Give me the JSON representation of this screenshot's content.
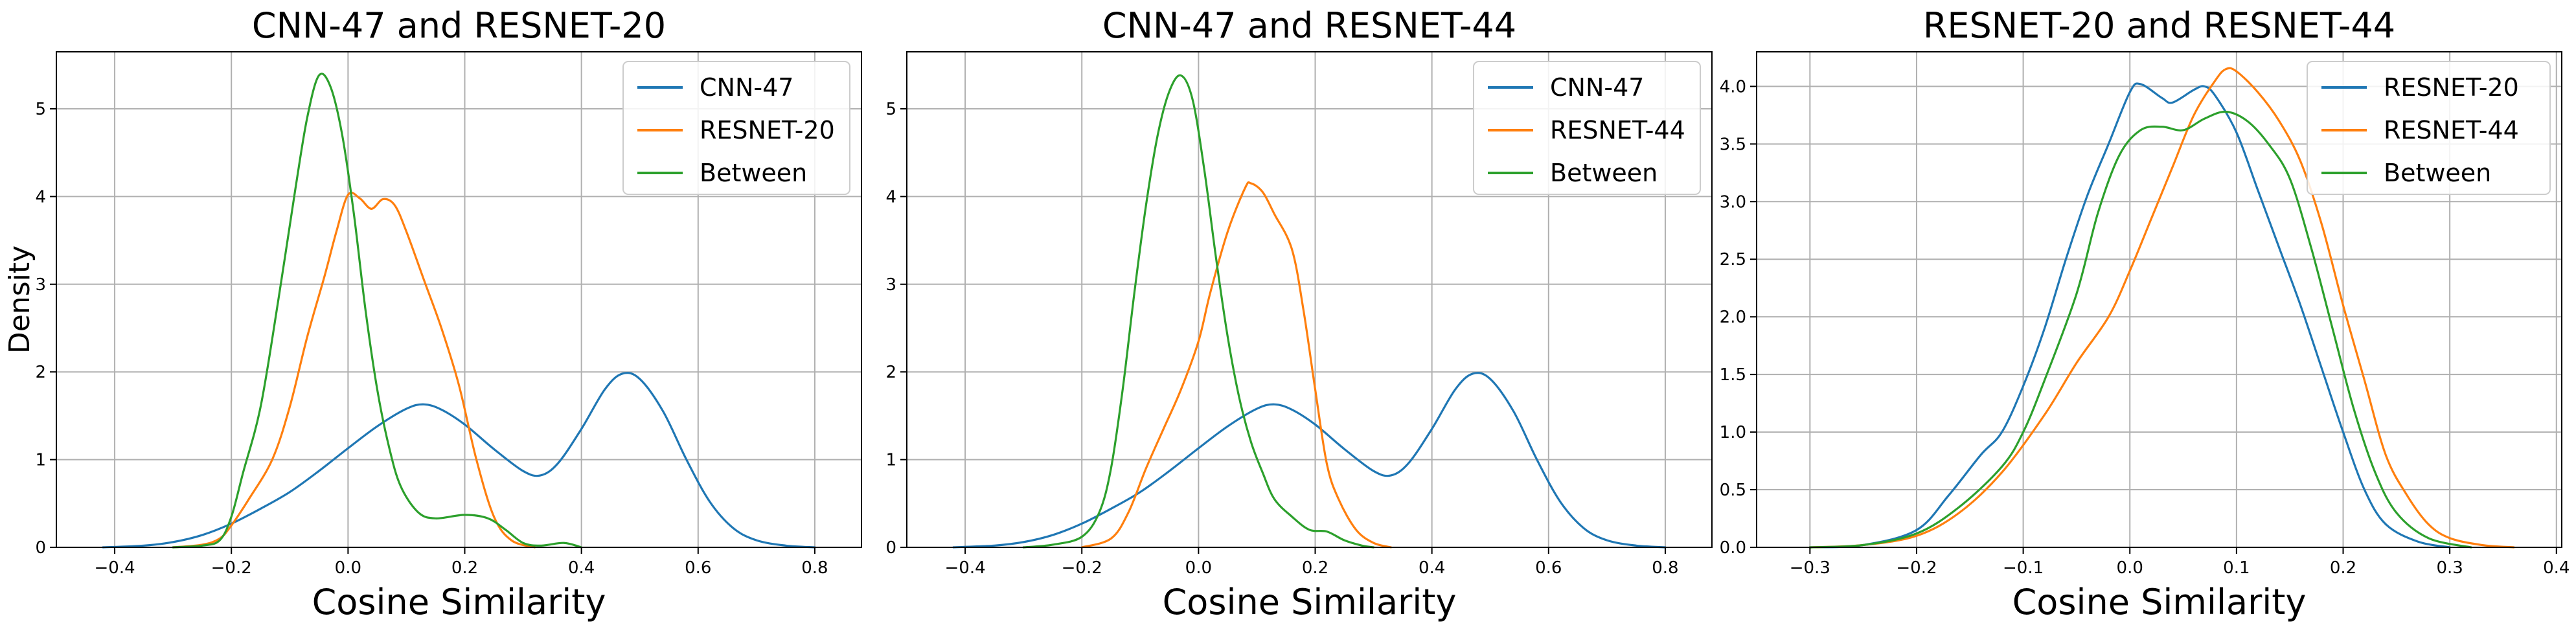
{
  "figure": {
    "shared_ylabel": "Density"
  },
  "chart_data": [
    {
      "type": "line",
      "title": "CNN-47 and RESNET-20",
      "xlabel": "Cosine Similarity",
      "ylabel": "Density",
      "xlim": [
        -0.5,
        0.88
      ],
      "ylim": [
        0,
        5.65
      ],
      "xticks": [
        -0.4,
        -0.2,
        0.0,
        0.2,
        0.4,
        0.6,
        0.8
      ],
      "xtick_labels": [
        "−0.4",
        "−0.2",
        "0.0",
        "0.2",
        "0.4",
        "0.6",
        "0.8"
      ],
      "yticks": [
        0,
        1,
        2,
        3,
        4,
        5
      ],
      "ytick_labels": [
        "0",
        "1",
        "2",
        "3",
        "4",
        "5"
      ],
      "grid": true,
      "legend_position": "top-right",
      "series": [
        {
          "name": "CNN-47",
          "color": "#1f77b4",
          "points": [
            [
              -0.42,
              0.0
            ],
            [
              -0.35,
              0.02
            ],
            [
              -0.3,
              0.06
            ],
            [
              -0.25,
              0.14
            ],
            [
              -0.2,
              0.27
            ],
            [
              -0.15,
              0.44
            ],
            [
              -0.1,
              0.63
            ],
            [
              -0.05,
              0.87
            ],
            [
              0.0,
              1.13
            ],
            [
              0.05,
              1.38
            ],
            [
              0.1,
              1.58
            ],
            [
              0.13,
              1.63
            ],
            [
              0.16,
              1.57
            ],
            [
              0.2,
              1.4
            ],
            [
              0.25,
              1.12
            ],
            [
              0.3,
              0.87
            ],
            [
              0.33,
              0.82
            ],
            [
              0.36,
              0.96
            ],
            [
              0.4,
              1.35
            ],
            [
              0.44,
              1.8
            ],
            [
              0.47,
              1.98
            ],
            [
              0.5,
              1.92
            ],
            [
              0.54,
              1.55
            ],
            [
              0.58,
              1.0
            ],
            [
              0.62,
              0.52
            ],
            [
              0.66,
              0.22
            ],
            [
              0.7,
              0.08
            ],
            [
              0.75,
              0.02
            ],
            [
              0.8,
              0.0
            ]
          ]
        },
        {
          "name": "RESNET-20",
          "color": "#ff7f0e",
          "points": [
            [
              -0.3,
              0.0
            ],
            [
              -0.25,
              0.03
            ],
            [
              -0.22,
              0.1
            ],
            [
              -0.2,
              0.25
            ],
            [
              -0.17,
              0.55
            ],
            [
              -0.13,
              1.0
            ],
            [
              -0.1,
              1.6
            ],
            [
              -0.07,
              2.4
            ],
            [
              -0.04,
              3.1
            ],
            [
              -0.02,
              3.6
            ],
            [
              0.0,
              4.02
            ],
            [
              0.02,
              3.98
            ],
            [
              0.04,
              3.86
            ],
            [
              0.06,
              3.97
            ],
            [
              0.08,
              3.9
            ],
            [
              0.1,
              3.6
            ],
            [
              0.13,
              3.05
            ],
            [
              0.16,
              2.5
            ],
            [
              0.19,
              1.85
            ],
            [
              0.22,
              1.0
            ],
            [
              0.25,
              0.35
            ],
            [
              0.28,
              0.08
            ],
            [
              0.32,
              0.0
            ]
          ]
        },
        {
          "name": "Between",
          "color": "#2ca02c",
          "points": [
            [
              -0.3,
              0.0
            ],
            [
              -0.25,
              0.02
            ],
            [
              -0.22,
              0.08
            ],
            [
              -0.2,
              0.35
            ],
            [
              -0.18,
              0.85
            ],
            [
              -0.15,
              1.6
            ],
            [
              -0.12,
              2.8
            ],
            [
              -0.09,
              4.1
            ],
            [
              -0.07,
              4.9
            ],
            [
              -0.05,
              5.38
            ],
            [
              -0.03,
              5.25
            ],
            [
              -0.01,
              4.7
            ],
            [
              0.01,
              3.8
            ],
            [
              0.03,
              2.7
            ],
            [
              0.05,
              1.8
            ],
            [
              0.07,
              1.15
            ],
            [
              0.09,
              0.7
            ],
            [
              0.12,
              0.4
            ],
            [
              0.15,
              0.33
            ],
            [
              0.2,
              0.37
            ],
            [
              0.24,
              0.33
            ],
            [
              0.27,
              0.2
            ],
            [
              0.3,
              0.05
            ],
            [
              0.33,
              0.02
            ],
            [
              0.37,
              0.05
            ],
            [
              0.4,
              0.0
            ]
          ]
        }
      ]
    },
    {
      "type": "line",
      "title": "CNN-47 and RESNET-44",
      "xlabel": "Cosine Similarity",
      "ylabel": "",
      "xlim": [
        -0.5,
        0.88
      ],
      "ylim": [
        0,
        5.65
      ],
      "xticks": [
        -0.4,
        -0.2,
        0.0,
        0.2,
        0.4,
        0.6,
        0.8
      ],
      "xtick_labels": [
        "−0.4",
        "−0.2",
        "0.0",
        "0.2",
        "0.4",
        "0.6",
        "0.8"
      ],
      "yticks": [
        0,
        1,
        2,
        3,
        4,
        5
      ],
      "ytick_labels": [
        "0",
        "1",
        "2",
        "3",
        "4",
        "5"
      ],
      "grid": true,
      "legend_position": "top-right",
      "series": [
        {
          "name": "CNN-47",
          "color": "#1f77b4",
          "points": [
            [
              -0.42,
              0.0
            ],
            [
              -0.35,
              0.02
            ],
            [
              -0.3,
              0.06
            ],
            [
              -0.25,
              0.14
            ],
            [
              -0.2,
              0.27
            ],
            [
              -0.15,
              0.44
            ],
            [
              -0.1,
              0.63
            ],
            [
              -0.05,
              0.87
            ],
            [
              0.0,
              1.13
            ],
            [
              0.05,
              1.38
            ],
            [
              0.1,
              1.58
            ],
            [
              0.13,
              1.63
            ],
            [
              0.16,
              1.57
            ],
            [
              0.2,
              1.4
            ],
            [
              0.25,
              1.12
            ],
            [
              0.3,
              0.87
            ],
            [
              0.33,
              0.82
            ],
            [
              0.36,
              0.96
            ],
            [
              0.4,
              1.35
            ],
            [
              0.44,
              1.8
            ],
            [
              0.47,
              1.98
            ],
            [
              0.5,
              1.92
            ],
            [
              0.54,
              1.55
            ],
            [
              0.58,
              1.0
            ],
            [
              0.62,
              0.52
            ],
            [
              0.66,
              0.22
            ],
            [
              0.7,
              0.08
            ],
            [
              0.75,
              0.02
            ],
            [
              0.8,
              0.0
            ]
          ]
        },
        {
          "name": "RESNET-44",
          "color": "#ff7f0e",
          "points": [
            [
              -0.2,
              0.0
            ],
            [
              -0.15,
              0.1
            ],
            [
              -0.12,
              0.4
            ],
            [
              -0.09,
              0.9
            ],
            [
              -0.06,
              1.35
            ],
            [
              -0.03,
              1.8
            ],
            [
              0.0,
              2.35
            ],
            [
              0.02,
              2.9
            ],
            [
              0.05,
              3.6
            ],
            [
              0.08,
              4.1
            ],
            [
              0.09,
              4.15
            ],
            [
              0.11,
              4.05
            ],
            [
              0.13,
              3.8
            ],
            [
              0.16,
              3.4
            ],
            [
              0.18,
              2.7
            ],
            [
              0.2,
              1.8
            ],
            [
              0.22,
              0.95
            ],
            [
              0.24,
              0.55
            ],
            [
              0.27,
              0.2
            ],
            [
              0.3,
              0.05
            ],
            [
              0.33,
              0.0
            ]
          ]
        },
        {
          "name": "Between",
          "color": "#2ca02c",
          "points": [
            [
              -0.3,
              0.0
            ],
            [
              -0.25,
              0.03
            ],
            [
              -0.2,
              0.12
            ],
            [
              -0.17,
              0.4
            ],
            [
              -0.15,
              0.9
            ],
            [
              -0.13,
              1.8
            ],
            [
              -0.11,
              2.9
            ],
            [
              -0.09,
              3.9
            ],
            [
              -0.07,
              4.7
            ],
            [
              -0.05,
              5.2
            ],
            [
              -0.03,
              5.38
            ],
            [
              -0.01,
              5.1
            ],
            [
              0.01,
              4.3
            ],
            [
              0.03,
              3.3
            ],
            [
              0.05,
              2.4
            ],
            [
              0.07,
              1.7
            ],
            [
              0.09,
              1.2
            ],
            [
              0.11,
              0.85
            ],
            [
              0.13,
              0.55
            ],
            [
              0.16,
              0.35
            ],
            [
              0.19,
              0.2
            ],
            [
              0.22,
              0.18
            ],
            [
              0.25,
              0.08
            ],
            [
              0.28,
              0.02
            ],
            [
              0.3,
              0.0
            ]
          ]
        }
      ]
    },
    {
      "type": "line",
      "title": "RESNET-20 and RESNET-44",
      "xlabel": "Cosine Similarity",
      "ylabel": "",
      "xlim": [
        -0.35,
        0.405
      ],
      "ylim": [
        0,
        4.3
      ],
      "xticks": [
        -0.3,
        -0.2,
        -0.1,
        0.0,
        0.1,
        0.2,
        0.3,
        0.4
      ],
      "xtick_labels": [
        "−0.3",
        "−0.2",
        "−0.1",
        "0.0",
        "0.1",
        "0.2",
        "0.3",
        "0.4"
      ],
      "yticks": [
        0,
        0.5,
        1.0,
        1.5,
        2.0,
        2.5,
        3.0,
        3.5,
        4.0
      ],
      "ytick_labels": [
        "0.0",
        "0.5",
        "1.0",
        "1.5",
        "2.0",
        "2.5",
        "3.0",
        "3.5",
        "4.0"
      ],
      "grid": true,
      "legend_position": "top-right",
      "series": [
        {
          "name": "RESNET-20",
          "color": "#1f77b4",
          "points": [
            [
              -0.3,
              0.0
            ],
            [
              -0.25,
              0.02
            ],
            [
              -0.2,
              0.15
            ],
            [
              -0.17,
              0.45
            ],
            [
              -0.14,
              0.8
            ],
            [
              -0.12,
              1.0
            ],
            [
              -0.1,
              1.4
            ],
            [
              -0.08,
              1.9
            ],
            [
              -0.06,
              2.5
            ],
            [
              -0.04,
              3.05
            ],
            [
              -0.02,
              3.5
            ],
            [
              0.0,
              3.95
            ],
            [
              0.01,
              4.02
            ],
            [
              0.03,
              3.9
            ],
            [
              0.04,
              3.86
            ],
            [
              0.06,
              3.97
            ],
            [
              0.07,
              4.0
            ],
            [
              0.08,
              3.92
            ],
            [
              0.1,
              3.6
            ],
            [
              0.12,
              3.1
            ],
            [
              0.14,
              2.6
            ],
            [
              0.16,
              2.1
            ],
            [
              0.18,
              1.55
            ],
            [
              0.2,
              1.0
            ],
            [
              0.22,
              0.5
            ],
            [
              0.24,
              0.2
            ],
            [
              0.27,
              0.05
            ],
            [
              0.3,
              0.0
            ]
          ]
        },
        {
          "name": "RESNET-44",
          "color": "#ff7f0e",
          "points": [
            [
              -0.3,
              0.0
            ],
            [
              -0.25,
              0.02
            ],
            [
              -0.2,
              0.1
            ],
            [
              -0.16,
              0.3
            ],
            [
              -0.12,
              0.65
            ],
            [
              -0.08,
              1.15
            ],
            [
              -0.05,
              1.6
            ],
            [
              -0.02,
              2.0
            ],
            [
              0.0,
              2.4
            ],
            [
              0.02,
              2.85
            ],
            [
              0.04,
              3.3
            ],
            [
              0.06,
              3.75
            ],
            [
              0.08,
              4.05
            ],
            [
              0.09,
              4.15
            ],
            [
              0.1,
              4.13
            ],
            [
              0.12,
              3.95
            ],
            [
              0.14,
              3.7
            ],
            [
              0.16,
              3.35
            ],
            [
              0.18,
              2.8
            ],
            [
              0.2,
              2.1
            ],
            [
              0.22,
              1.45
            ],
            [
              0.24,
              0.8
            ],
            [
              0.26,
              0.45
            ],
            [
              0.28,
              0.2
            ],
            [
              0.3,
              0.08
            ],
            [
              0.33,
              0.02
            ],
            [
              0.36,
              0.0
            ]
          ]
        },
        {
          "name": "Between",
          "color": "#2ca02c",
          "points": [
            [
              -0.3,
              0.0
            ],
            [
              -0.25,
              0.02
            ],
            [
              -0.2,
              0.12
            ],
            [
              -0.16,
              0.35
            ],
            [
              -0.12,
              0.7
            ],
            [
              -0.1,
              1.0
            ],
            [
              -0.08,
              1.45
            ],
            [
              -0.05,
              2.2
            ],
            [
              -0.03,
              2.9
            ],
            [
              -0.01,
              3.4
            ],
            [
              0.01,
              3.62
            ],
            [
              0.03,
              3.65
            ],
            [
              0.05,
              3.62
            ],
            [
              0.07,
              3.72
            ],
            [
              0.09,
              3.78
            ],
            [
              0.11,
              3.7
            ],
            [
              0.13,
              3.5
            ],
            [
              0.15,
              3.2
            ],
            [
              0.17,
              2.6
            ],
            [
              0.19,
              1.9
            ],
            [
              0.21,
              1.2
            ],
            [
              0.23,
              0.65
            ],
            [
              0.25,
              0.3
            ],
            [
              0.28,
              0.08
            ],
            [
              0.32,
              0.0
            ]
          ]
        }
      ]
    }
  ]
}
